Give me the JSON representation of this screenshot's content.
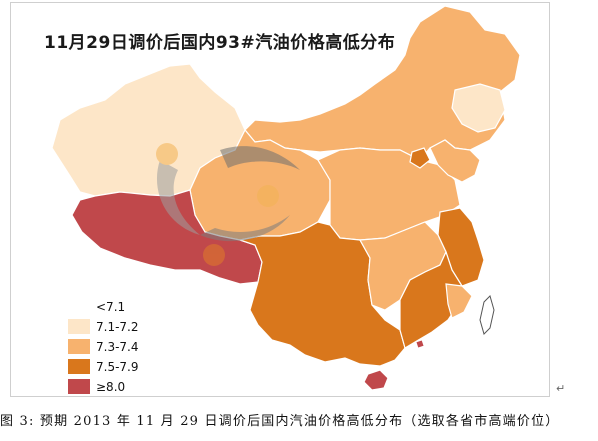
{
  "map": {
    "title": "11月29日调价后国内93#汽油价格高低分布"
  },
  "legend": [
    {
      "label": "<7.1",
      "color": "#ffffff"
    },
    {
      "label": "7.1-7.2",
      "color": "#fde6c8"
    },
    {
      "label": "7.3-7.4",
      "color": "#f7b26e"
    },
    {
      "label": "7.5-7.9",
      "color": "#d9771c"
    },
    {
      "label": "≥8.0",
      "color": "#c0484b"
    }
  ],
  "caption": "图 3: 预期 2013 年 11 月 29 日调价后国内汽油价格高低分布（选取各省市高端价位）",
  "paragraph_mark": "↵"
}
